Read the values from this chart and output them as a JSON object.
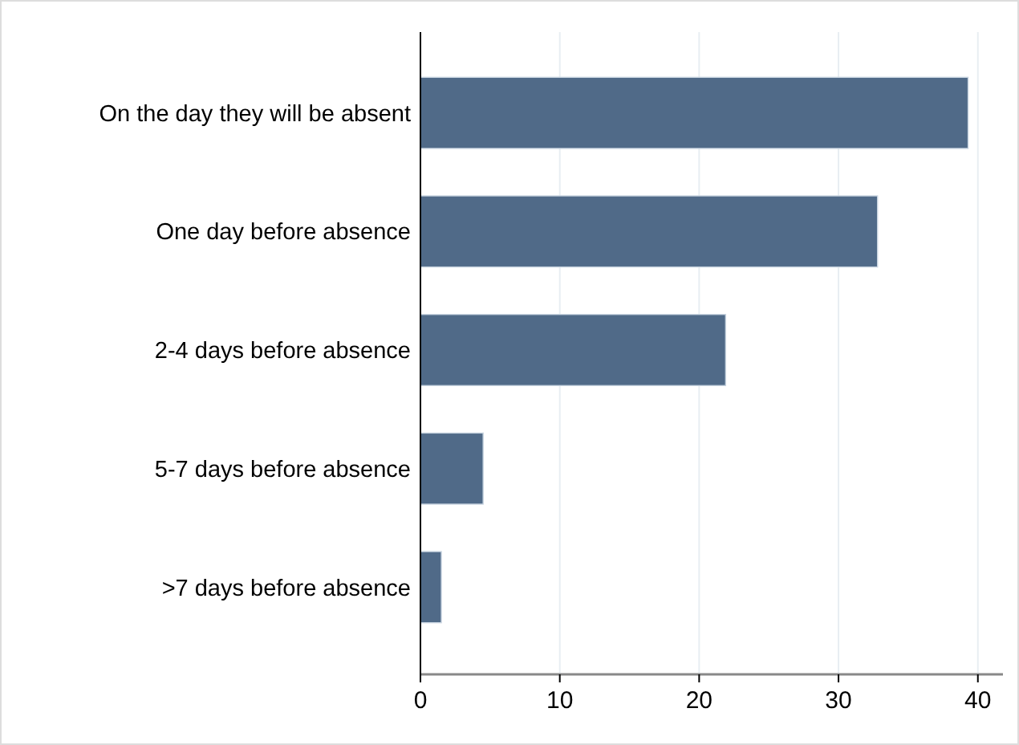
{
  "chart_data": {
    "type": "bar",
    "orientation": "horizontal",
    "categories": [
      "On the day they will be absent",
      "One day before absence",
      "2-4 days before absence",
      "5-7 days before absence",
      ">7 days before absence"
    ],
    "values": [
      39.3,
      32.8,
      21.9,
      4.5,
      1.5
    ],
    "color": "#506a88",
    "xlim": [
      0,
      41.8
    ],
    "xticks": [
      0,
      10,
      20,
      30,
      40
    ],
    "grid": "x"
  }
}
